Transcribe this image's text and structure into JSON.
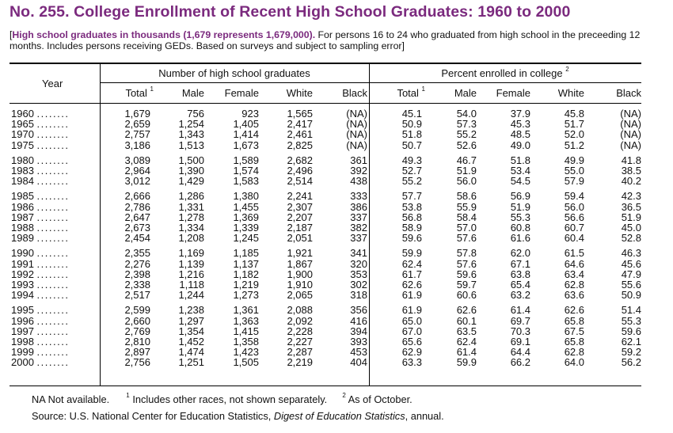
{
  "title": "No. 255. College Enrollment of Recent High School Graduates: 1960 to 2000",
  "headnote": {
    "bracket_open": "[",
    "highlight": "High school graduates in thousands (1,679 represents 1,679,000).",
    "text": " For persons 16 to 24 who graduated from high school in the preceeding 12 months. Includes persons receiving GEDs. Based on surveys and subject to sampling error]"
  },
  "table": {
    "year_header": "Year",
    "group1_header": "Number of high school graduates",
    "group2_header": "Percent enrolled in college",
    "group2_sup": "2",
    "columns": [
      "Total",
      "Male",
      "Female",
      "White",
      "Black",
      "Total",
      "Male",
      "Female",
      "White",
      "Black"
    ],
    "total_sup": "1",
    "year_dots": "........",
    "groups": [
      [
        {
          "year": "1960",
          "v": [
            "1,679",
            "756",
            "923",
            "1,565",
            "(NA)",
            "45.1",
            "54.0",
            "37.9",
            "45.8",
            "(NA)"
          ]
        },
        {
          "year": "1965",
          "v": [
            "2,659",
            "1,254",
            "1,405",
            "2,417",
            "(NA)",
            "50.9",
            "57.3",
            "45.3",
            "51.7",
            "(NA)"
          ]
        },
        {
          "year": "1970",
          "v": [
            "2,757",
            "1,343",
            "1,414",
            "2,461",
            "(NA)",
            "51.8",
            "55.2",
            "48.5",
            "52.0",
            "(NA)"
          ]
        },
        {
          "year": "1975",
          "v": [
            "3,186",
            "1,513",
            "1,673",
            "2,825",
            "(NA)",
            "50.7",
            "52.6",
            "49.0",
            "51.2",
            "(NA)"
          ]
        }
      ],
      [
        {
          "year": "1980",
          "v": [
            "3,089",
            "1,500",
            "1,589",
            "2,682",
            "361",
            "49.3",
            "46.7",
            "51.8",
            "49.9",
            "41.8"
          ]
        },
        {
          "year": "1983",
          "v": [
            "2,964",
            "1,390",
            "1,574",
            "2,496",
            "392",
            "52.7",
            "51.9",
            "53.4",
            "55.0",
            "38.5"
          ]
        },
        {
          "year": "1984",
          "v": [
            "3,012",
            "1,429",
            "1,583",
            "2,514",
            "438",
            "55.2",
            "56.0",
            "54.5",
            "57.9",
            "40.2"
          ]
        }
      ],
      [
        {
          "year": "1985",
          "v": [
            "2,666",
            "1,286",
            "1,380",
            "2,241",
            "333",
            "57.7",
            "58.6",
            "56.9",
            "59.4",
            "42.3"
          ]
        },
        {
          "year": "1986",
          "v": [
            "2,786",
            "1,331",
            "1,455",
            "2,307",
            "386",
            "53.8",
            "55.9",
            "51.9",
            "56.0",
            "36.5"
          ]
        },
        {
          "year": "1987",
          "v": [
            "2,647",
            "1,278",
            "1,369",
            "2,207",
            "337",
            "56.8",
            "58.4",
            "55.3",
            "56.6",
            "51.9"
          ]
        },
        {
          "year": "1988",
          "v": [
            "2,673",
            "1,334",
            "1,339",
            "2,187",
            "382",
            "58.9",
            "57.0",
            "60.8",
            "60.7",
            "45.0"
          ]
        },
        {
          "year": "1989",
          "v": [
            "2,454",
            "1,208",
            "1,245",
            "2,051",
            "337",
            "59.6",
            "57.6",
            "61.6",
            "60.4",
            "52.8"
          ]
        }
      ],
      [
        {
          "year": "1990",
          "v": [
            "2,355",
            "1,169",
            "1,185",
            "1,921",
            "341",
            "59.9",
            "57.8",
            "62.0",
            "61.5",
            "46.3"
          ]
        },
        {
          "year": "1991",
          "v": [
            "2,276",
            "1,139",
            "1,137",
            "1,867",
            "320",
            "62.4",
            "57.6",
            "67.1",
            "64.6",
            "45.6"
          ]
        },
        {
          "year": "1992",
          "v": [
            "2,398",
            "1,216",
            "1,182",
            "1,900",
            "353",
            "61.7",
            "59.6",
            "63.8",
            "63.4",
            "47.9"
          ]
        },
        {
          "year": "1993",
          "v": [
            "2,338",
            "1,118",
            "1,219",
            "1,910",
            "302",
            "62.6",
            "59.7",
            "65.4",
            "62.8",
            "55.6"
          ]
        },
        {
          "year": "1994",
          "v": [
            "2,517",
            "1,244",
            "1,273",
            "2,065",
            "318",
            "61.9",
            "60.6",
            "63.2",
            "63.6",
            "50.9"
          ]
        }
      ],
      [
        {
          "year": "1995",
          "v": [
            "2,599",
            "1,238",
            "1,361",
            "2,088",
            "356",
            "61.9",
            "62.6",
            "61.4",
            "62.6",
            "51.4"
          ]
        },
        {
          "year": "1996",
          "v": [
            "2,660",
            "1,297",
            "1,363",
            "2,092",
            "416",
            "65.0",
            "60.1",
            "69.7",
            "65.8",
            "55.3"
          ]
        },
        {
          "year": "1997",
          "v": [
            "2,769",
            "1,354",
            "1,415",
            "2,228",
            "394",
            "67.0",
            "63.5",
            "70.3",
            "67.5",
            "59.6"
          ]
        },
        {
          "year": "1998",
          "v": [
            "2,810",
            "1,452",
            "1,358",
            "2,227",
            "393",
            "65.6",
            "62.4",
            "69.1",
            "65.8",
            "62.1"
          ]
        },
        {
          "year": "1999",
          "v": [
            "2,897",
            "1,474",
            "1,423",
            "2,287",
            "453",
            "62.9",
            "61.4",
            "64.4",
            "62.8",
            "59.2"
          ]
        },
        {
          "year": "2000",
          "v": [
            "2,756",
            "1,251",
            "1,505",
            "2,219",
            "404",
            "63.3",
            "59.9",
            "66.2",
            "64.0",
            "56.2"
          ]
        }
      ]
    ]
  },
  "footnotes": {
    "na": "NA Not available.",
    "fn1_sup": "1",
    "fn1_text": "Includes other races, not shown separately.",
    "fn2_sup": "2",
    "fn2_text": "As of October.",
    "source_prefix": "Source: U.S. National Center for Education Statistics, ",
    "source_italic": "Digest of Education Statistics",
    "source_suffix": ", annual."
  }
}
